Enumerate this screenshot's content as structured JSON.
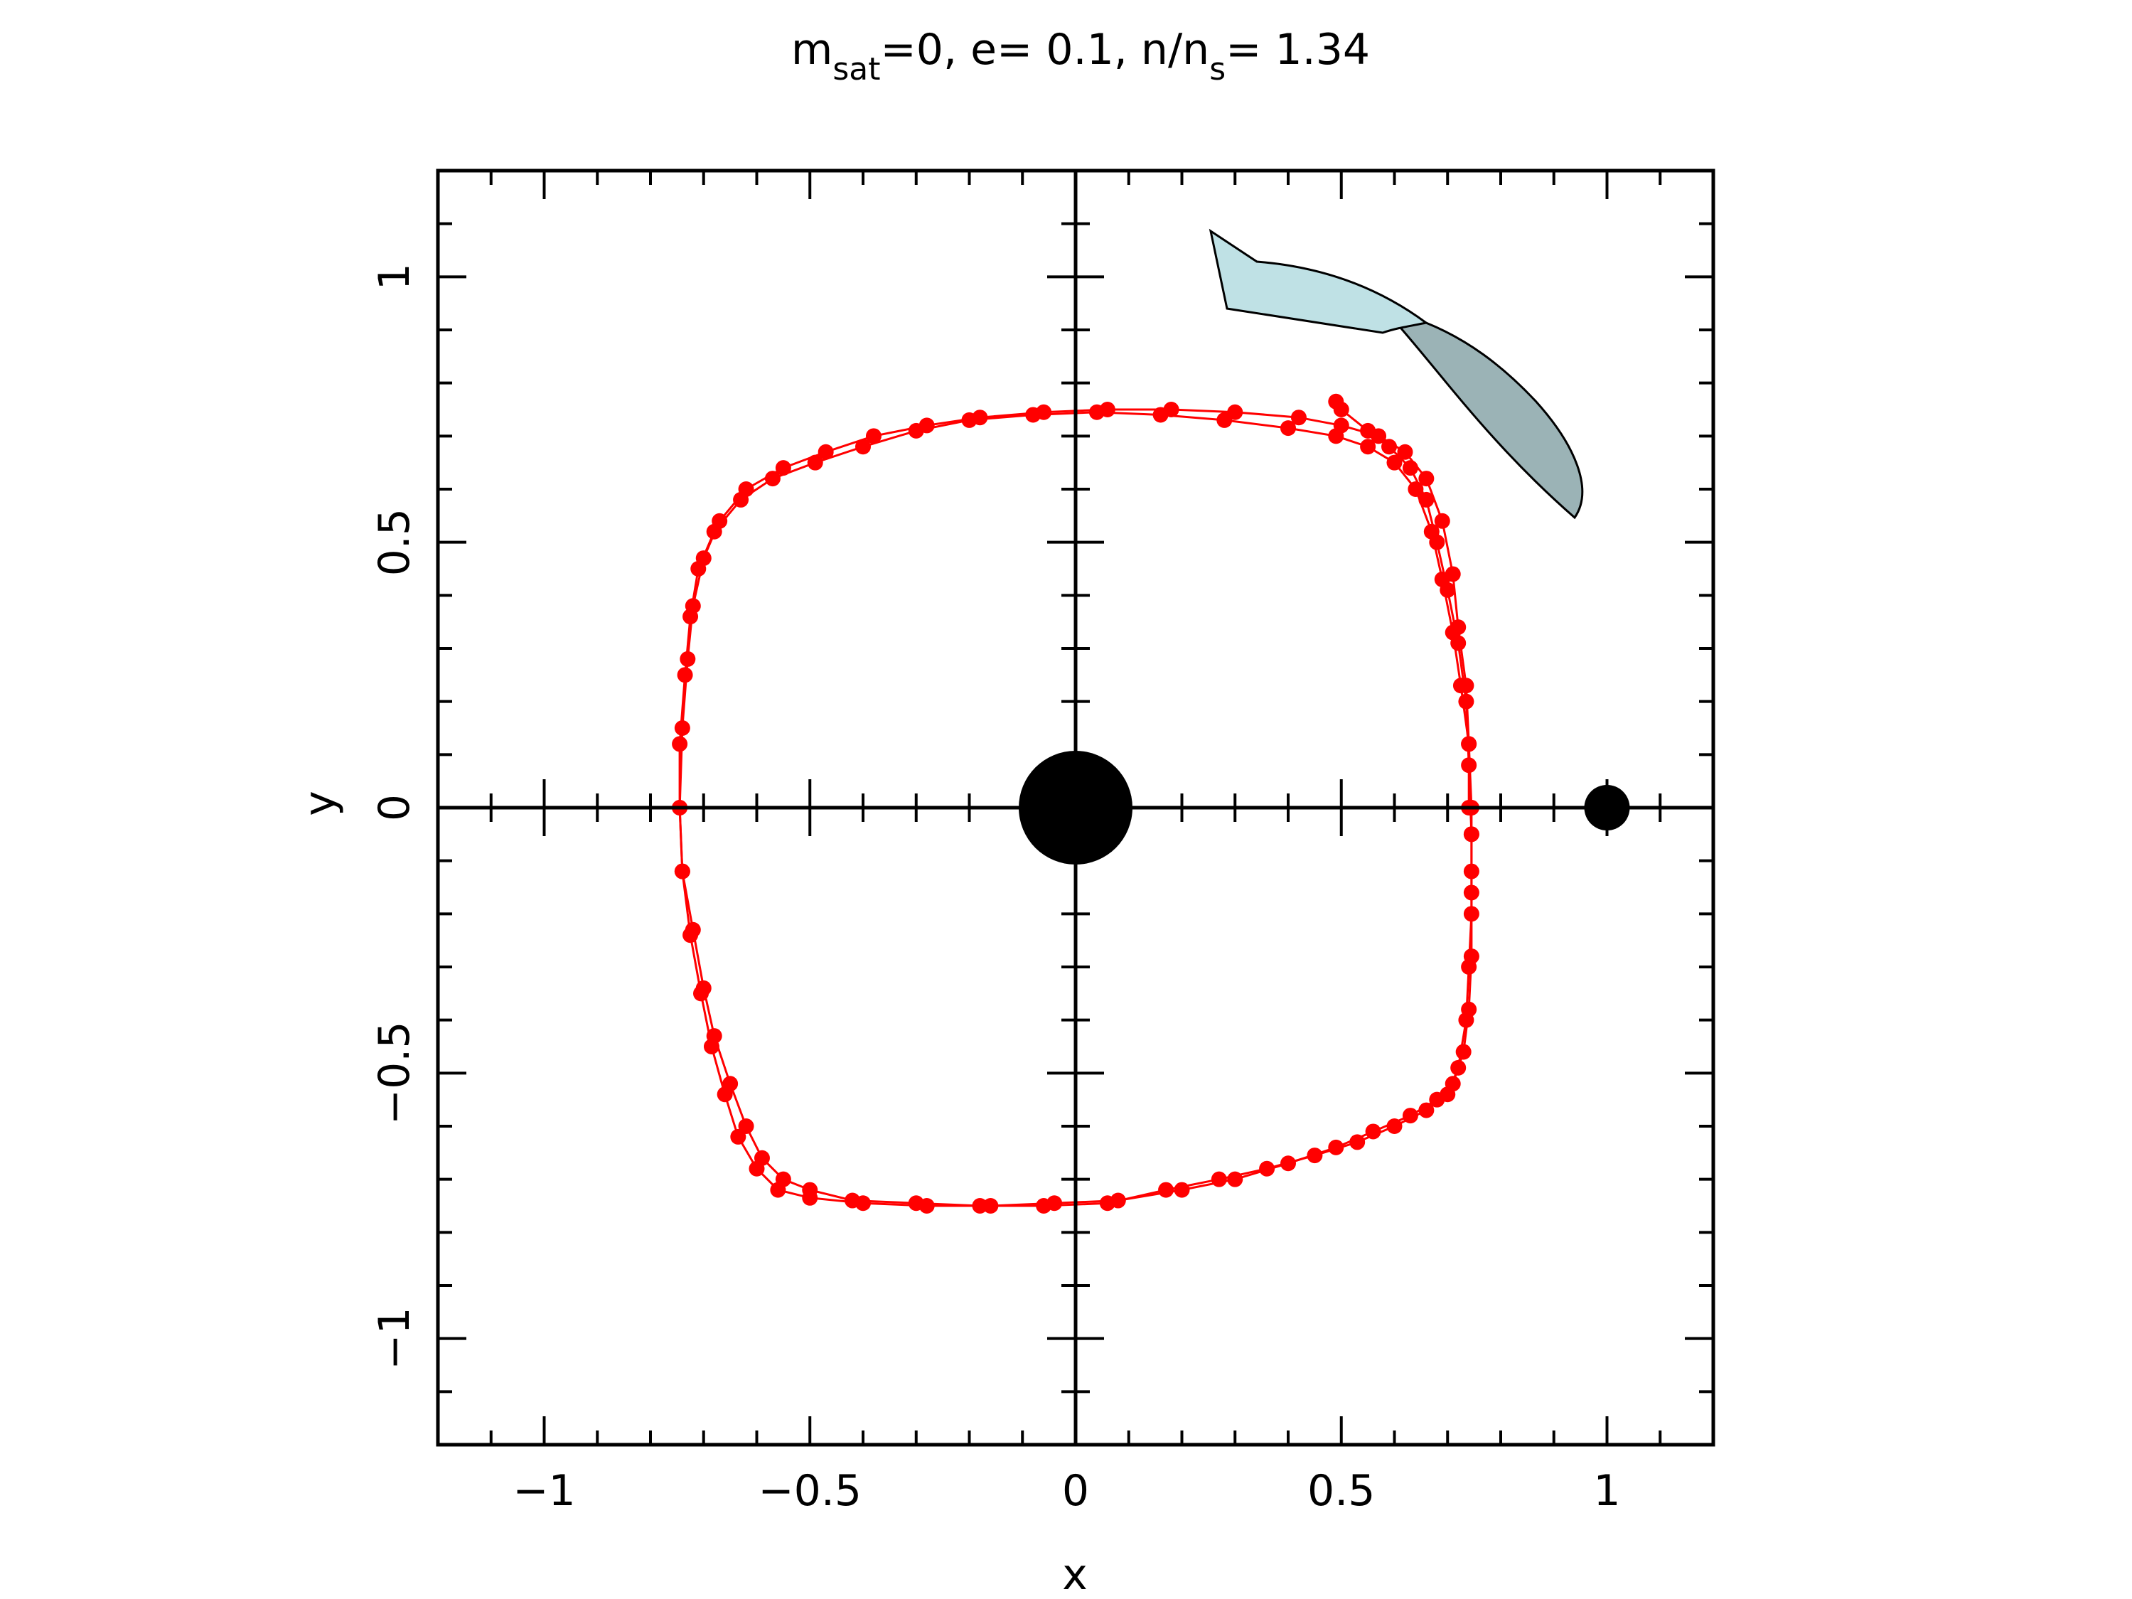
{
  "colors": {
    "series": "#ff0000",
    "axis": "#000000",
    "arrow_light": "#bfe1e5",
    "arrow_dark": "#9bb3b6",
    "background": "#ffffff"
  },
  "chart_data": {
    "type": "scatter",
    "title": {
      "m": "m",
      "m_sub": "sat",
      "part1": "=0, e= 0.1, n/n",
      "n_sub": "s",
      "part2": "= 1.34"
    },
    "xlabel": "x",
    "ylabel": "y",
    "xlim": [
      -1.2,
      1.2
    ],
    "ylim": [
      -1.2,
      1.2
    ],
    "xticks": [
      {
        "value": -1,
        "label": "−1"
      },
      {
        "value": -0.5,
        "label": "−0.5"
      },
      {
        "value": 0,
        "label": "0"
      },
      {
        "value": 0.5,
        "label": "0.5"
      },
      {
        "value": 1,
        "label": "1"
      }
    ],
    "yticks": [
      {
        "value": -1,
        "label": "−1"
      },
      {
        "value": -0.5,
        "label": "−0.5"
      },
      {
        "value": 0,
        "label": "0"
      },
      {
        "value": 0.5,
        "label": "0.5"
      },
      {
        "value": 1,
        "label": "1"
      }
    ],
    "minor_tick_step": 0.1,
    "grid": false,
    "zero_axes": true,
    "series": [
      {
        "color": "#ff0000",
        "connected": true,
        "points": [
          [
            0.74,
            0.0
          ],
          [
            0.74,
            0.12
          ],
          [
            0.735,
            0.23
          ],
          [
            0.72,
            0.34
          ],
          [
            0.71,
            0.44
          ],
          [
            0.69,
            0.54
          ],
          [
            0.66,
            0.62
          ],
          [
            0.62,
            0.67
          ],
          [
            0.57,
            0.7
          ],
          [
            0.5,
            0.72
          ],
          [
            0.42,
            0.735
          ],
          [
            0.3,
            0.745
          ],
          [
            0.18,
            0.75
          ],
          [
            0.06,
            0.75
          ],
          [
            -0.06,
            0.745
          ],
          [
            -0.18,
            0.735
          ],
          [
            -0.28,
            0.72
          ],
          [
            -0.38,
            0.7
          ],
          [
            -0.47,
            0.67
          ],
          [
            -0.55,
            0.64
          ],
          [
            -0.62,
            0.6
          ],
          [
            -0.67,
            0.54
          ],
          [
            -0.7,
            0.47
          ],
          [
            -0.72,
            0.38
          ],
          [
            -0.73,
            0.28
          ],
          [
            -0.74,
            0.15
          ],
          [
            -0.745,
            0.0
          ],
          [
            -0.74,
            -0.12
          ],
          [
            -0.72,
            -0.23
          ],
          [
            -0.7,
            -0.34
          ],
          [
            -0.68,
            -0.43
          ],
          [
            -0.65,
            -0.52
          ],
          [
            -0.62,
            -0.6
          ],
          [
            -0.59,
            -0.66
          ],
          [
            -0.55,
            -0.7
          ],
          [
            -0.5,
            -0.72
          ],
          [
            -0.42,
            -0.74
          ],
          [
            -0.3,
            -0.745
          ],
          [
            -0.18,
            -0.75
          ],
          [
            -0.06,
            -0.75
          ],
          [
            0.06,
            -0.745
          ],
          [
            0.17,
            -0.72
          ],
          [
            0.27,
            -0.7
          ],
          [
            0.36,
            -0.68
          ],
          [
            0.45,
            -0.655
          ],
          [
            0.53,
            -0.63
          ],
          [
            0.6,
            -0.6
          ],
          [
            0.66,
            -0.57
          ],
          [
            0.7,
            -0.54
          ],
          [
            0.72,
            -0.49
          ],
          [
            0.735,
            -0.4
          ],
          [
            0.74,
            -0.3
          ],
          [
            0.745,
            -0.2
          ],
          [
            0.745,
            -0.12
          ],
          [
            0.745,
            0.0
          ]
        ]
      },
      {
        "color": "#ff0000",
        "connected": true,
        "points": [
          [
            0.745,
            0.0
          ],
          [
            0.74,
            0.12
          ],
          [
            0.725,
            0.23
          ],
          [
            0.71,
            0.33
          ],
          [
            0.69,
            0.43
          ],
          [
            0.67,
            0.52
          ],
          [
            0.64,
            0.6
          ],
          [
            0.6,
            0.65
          ],
          [
            0.55,
            0.68
          ],
          [
            0.49,
            0.7
          ],
          [
            0.4,
            0.715
          ],
          [
            0.28,
            0.73
          ],
          [
            0.16,
            0.74
          ],
          [
            0.04,
            0.745
          ],
          [
            -0.08,
            0.74
          ],
          [
            -0.2,
            0.73
          ],
          [
            -0.3,
            0.71
          ],
          [
            -0.4,
            0.68
          ],
          [
            -0.49,
            0.65
          ],
          [
            -0.57,
            0.62
          ],
          [
            -0.63,
            0.58
          ],
          [
            -0.68,
            0.52
          ],
          [
            -0.71,
            0.45
          ],
          [
            -0.725,
            0.36
          ],
          [
            -0.735,
            0.25
          ],
          [
            -0.745,
            0.12
          ],
          [
            -0.745,
            0.0
          ],
          [
            -0.74,
            -0.12
          ],
          [
            -0.725,
            -0.24
          ],
          [
            -0.705,
            -0.35
          ],
          [
            -0.685,
            -0.45
          ],
          [
            -0.66,
            -0.54
          ],
          [
            -0.635,
            -0.62
          ],
          [
            -0.6,
            -0.68
          ],
          [
            -0.56,
            -0.72
          ],
          [
            -0.5,
            -0.735
          ],
          [
            -0.4,
            -0.745
          ],
          [
            -0.28,
            -0.75
          ],
          [
            -0.16,
            -0.75
          ],
          [
            -0.04,
            -0.745
          ],
          [
            0.08,
            -0.74
          ],
          [
            0.2,
            -0.72
          ],
          [
            0.3,
            -0.7
          ],
          [
            0.4,
            -0.67
          ],
          [
            0.49,
            -0.64
          ],
          [
            0.56,
            -0.61
          ],
          [
            0.63,
            -0.58
          ],
          [
            0.68,
            -0.55
          ],
          [
            0.71,
            -0.52
          ],
          [
            0.73,
            -0.46
          ],
          [
            0.74,
            -0.38
          ],
          [
            0.745,
            -0.28
          ],
          [
            0.745,
            -0.16
          ],
          [
            0.745,
            -0.05
          ]
        ]
      },
      {
        "color": "#ff0000",
        "connected": true,
        "points": [
          [
            0.745,
            -0.05
          ],
          [
            0.74,
            0.08
          ],
          [
            0.735,
            0.2
          ],
          [
            0.72,
            0.31
          ],
          [
            0.7,
            0.41
          ],
          [
            0.68,
            0.5
          ],
          [
            0.66,
            0.58
          ],
          [
            0.63,
            0.64
          ],
          [
            0.59,
            0.68
          ],
          [
            0.55,
            0.71
          ],
          [
            0.5,
            0.75
          ],
          [
            0.49,
            0.765
          ]
        ]
      }
    ],
    "markers": [
      {
        "x": 0,
        "y": 0,
        "size": "large",
        "color": "#000000"
      },
      {
        "x": 1,
        "y": 0,
        "size": "small",
        "color": "#000000"
      }
    ],
    "annotations": [
      {
        "type": "curved-arrow",
        "direction": "counterclockwise",
        "position": "top-right"
      }
    ]
  }
}
